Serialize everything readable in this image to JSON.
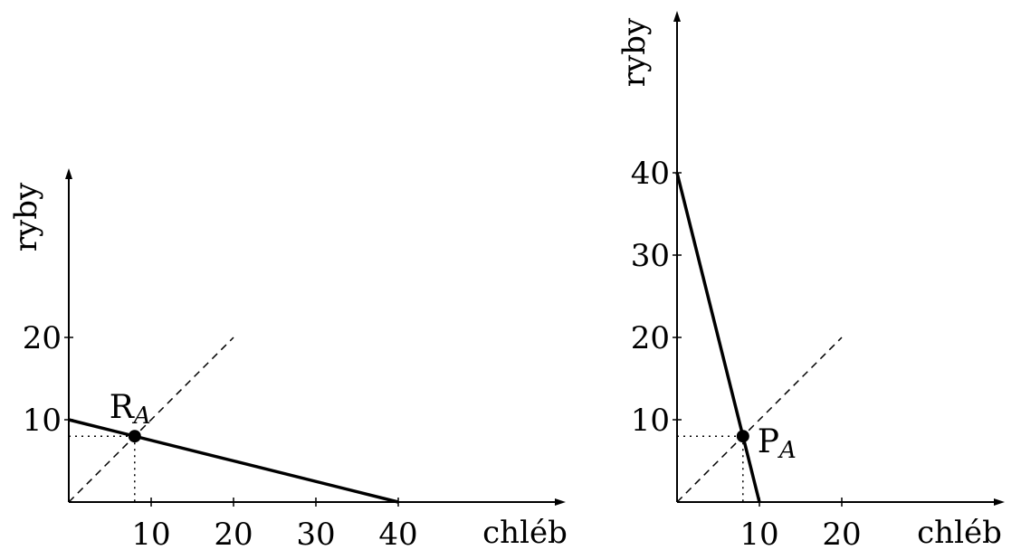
{
  "chart_data": [
    {
      "type": "line",
      "xlabel": "chléb",
      "ylabel": "ryby",
      "xlim": [
        0,
        60
      ],
      "ylim": [
        0,
        40
      ],
      "x_ticks": [
        10,
        20,
        30,
        40
      ],
      "y_ticks": [
        10,
        20
      ],
      "series": [
        {
          "style": "solid",
          "points": [
            [
              0,
              10
            ],
            [
              40,
              0
            ]
          ]
        },
        {
          "style": "dashed",
          "points": [
            [
              0,
              0
            ],
            [
              20,
              20
            ]
          ]
        }
      ],
      "point": {
        "x": 8,
        "y": 8,
        "label": "R",
        "label_sub": "A"
      }
    },
    {
      "type": "line",
      "xlabel": "chléb",
      "ylabel": "ryby",
      "xlim": [
        0,
        40
      ],
      "ylim": [
        0,
        60
      ],
      "x_ticks": [
        10,
        20
      ],
      "y_ticks": [
        10,
        20,
        30,
        40
      ],
      "series": [
        {
          "style": "solid",
          "points": [
            [
              0,
              40
            ],
            [
              10,
              0
            ]
          ]
        },
        {
          "style": "dashed",
          "points": [
            [
              0,
              0
            ],
            [
              20,
              20
            ]
          ]
        }
      ],
      "point": {
        "x": 8,
        "y": 8,
        "label": "P",
        "label_sub": "A"
      }
    }
  ]
}
